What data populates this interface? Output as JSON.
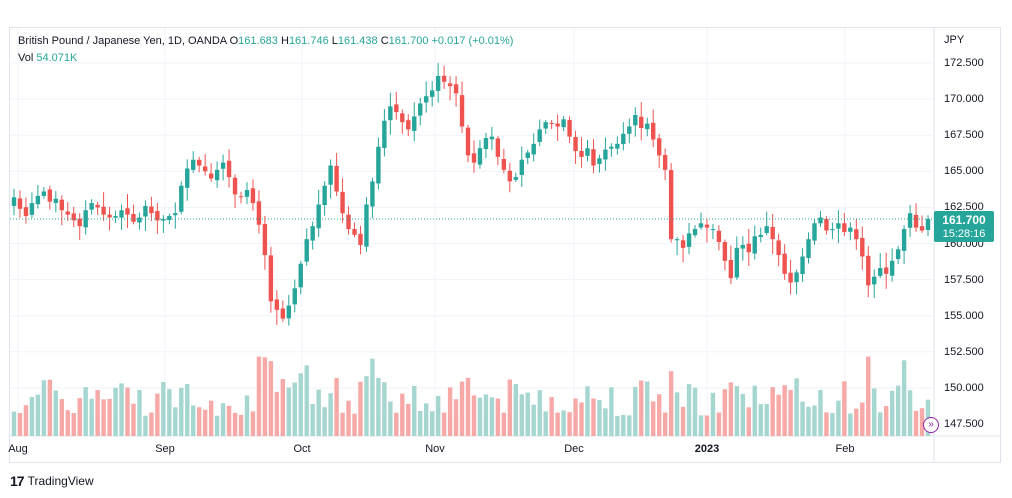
{
  "legend": {
    "symbol": "British Pound / Japanese Yen, 1D, OANDA",
    "o_label": "O",
    "o_value": "161.683",
    "h_label": "H",
    "h_value": "161.746",
    "l_label": "L",
    "l_value": "161.438",
    "c_label": "C",
    "c_value": "161.700",
    "change": "+0.017 (+0.01%)",
    "vol_label": "Vol",
    "vol_value": "54.071K"
  },
  "price_axis": {
    "currency": "JPY",
    "ticks": [
      "172.500",
      "170.000",
      "167.500",
      "165.000",
      "162.500",
      "160.000",
      "157.500",
      "155.000",
      "152.500",
      "150.000",
      "147.500"
    ]
  },
  "time_axis": {
    "labels": [
      {
        "text": "Aug",
        "bold": false
      },
      {
        "text": "Sep",
        "bold": false
      },
      {
        "text": "Oct",
        "bold": false
      },
      {
        "text": "Nov",
        "bold": false
      },
      {
        "text": "Dec",
        "bold": false
      },
      {
        "text": "2023",
        "bold": true
      },
      {
        "text": "Feb",
        "bold": false
      }
    ]
  },
  "last_price": {
    "price": "161.700",
    "countdown": "15:28:16"
  },
  "colors": {
    "up": "#26a69a",
    "down": "#ef5350",
    "vol_up": "#a6d6d0",
    "vol_down": "#f7a9a7",
    "grid": "#f0f3fa"
  },
  "footer": {
    "logo": "17",
    "brand": "TradingView"
  },
  "chart_data": {
    "type": "candlestick",
    "title": "British Pound / Japanese Yen, 1D, OANDA",
    "ylabel": "JPY",
    "ylim": [
      147.0,
      173.5
    ],
    "y_ticks": [
      172.5,
      170.0,
      167.5,
      165.0,
      162.5,
      160.0,
      157.5,
      155.0,
      152.5,
      150.0,
      147.5
    ],
    "x_ticks": [
      "Aug",
      "Sep",
      "Oct",
      "Nov",
      "Dec",
      "2023",
      "Feb"
    ],
    "last_close": 161.7,
    "series": [
      {
        "name": "Vol",
        "values_note": "volume bars, relative"
      }
    ],
    "closes": [
      163.2,
      162.4,
      161.9,
      162.8,
      163.3,
      163.6,
      162.9,
      163.1,
      162.3,
      162.0,
      161.6,
      161.2,
      162.3,
      162.8,
      162.5,
      162.0,
      161.8,
      161.9,
      162.3,
      162.0,
      161.5,
      161.8,
      162.6,
      162.1,
      161.6,
      161.7,
      161.9,
      162.1,
      164.0,
      165.2,
      165.8,
      165.4,
      165.0,
      164.5,
      165.1,
      165.6,
      164.6,
      163.4,
      163.2,
      163.7,
      162.8,
      161.3,
      159.2,
      156.0,
      155.4,
      154.8,
      155.7,
      156.9,
      158.6,
      160.3,
      161.2,
      162.7,
      164.0,
      165.4,
      163.6,
      162.1,
      161.0,
      160.6,
      159.9,
      162.7,
      164.3,
      166.7,
      168.5,
      169.5,
      169.1,
      168.4,
      167.9,
      168.8,
      169.7,
      170.2,
      170.6,
      171.6,
      171.2,
      170.9,
      170.4,
      168.1,
      166.1,
      165.6,
      166.6,
      167.3,
      167.4,
      166.0,
      165.1,
      164.3,
      164.6,
      165.8,
      166.3,
      166.9,
      167.9,
      168.4,
      168.3,
      168.1,
      168.6,
      167.4,
      166.4,
      166.0,
      166.6,
      165.4,
      165.9,
      166.5,
      166.7,
      166.9,
      167.6,
      168.1,
      168.9,
      168.0,
      168.3,
      167.2,
      166.1,
      165.1,
      160.3,
      160.3,
      159.7,
      160.7,
      161.0,
      161.4,
      161.1,
      161.0,
      160.1,
      158.8,
      157.6,
      159.7,
      159.9,
      159.4,
      160.5,
      160.6,
      161.2,
      160.3,
      159.2,
      157.9,
      157.3,
      158.0,
      159.1,
      160.3,
      161.4,
      161.8,
      160.9,
      161.0,
      161.4,
      160.8,
      161.1,
      160.3,
      159.1,
      157.1,
      157.7,
      158.3,
      157.9,
      158.8,
      159.6,
      161.0,
      162.1,
      161.1,
      160.9,
      161.7
    ]
  }
}
